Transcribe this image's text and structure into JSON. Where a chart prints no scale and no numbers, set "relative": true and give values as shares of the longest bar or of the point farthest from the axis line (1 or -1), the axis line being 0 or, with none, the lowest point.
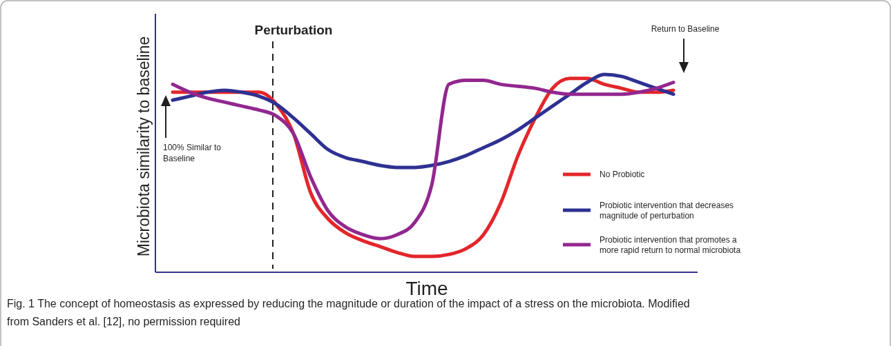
{
  "chart_data": {
    "type": "line",
    "relative": true,
    "xlabel": "Time",
    "ylabel": "Microbiota similarity to baseline",
    "legend": "right",
    "line_style": "solid",
    "marker": "none",
    "categories": [
      null,
      null,
      null,
      null,
      null,
      null,
      null,
      null,
      null,
      null,
      null,
      null,
      null,
      null,
      null,
      null,
      null,
      null,
      null,
      null,
      null,
      null,
      null,
      null,
      null,
      null,
      null,
      null,
      null,
      null
    ],
    "annotations": [
      "Perturbation",
      "100% Similar to Baseline",
      "Return to Baseline",
      "Fig. 1 The concept of homeostasis as expressed by reducing the magnitude or duration of the impact of a stress on the microbiota. Modified from Sanders et al. [12], no permission required"
    ],
    "series": [
      {
        "name": "No Probiotic",
        "color": "#e3262b",
        "values": [
          0.91,
          0.91,
          0.91,
          0.91,
          0.91,
          0.91,
          0.85,
          0.7,
          0.4,
          0.27,
          0.2,
          0.16,
          0.13,
          0.1,
          0.08,
          0.08,
          0.09,
          0.12,
          0.19,
          0.35,
          0.59,
          0.78,
          0.93,
          0.98,
          0.98,
          0.95,
          0.93,
          0.91,
          0.91,
          0.92
        ]
      },
      {
        "name": "Probiotic intervention that decreases magnitude of perturbation",
        "color": "#2e3192",
        "values": [
          0.87,
          0.89,
          0.91,
          0.92,
          0.91,
          0.89,
          0.85,
          0.78,
          0.7,
          0.62,
          0.58,
          0.56,
          0.54,
          0.53,
          0.53,
          0.54,
          0.56,
          0.59,
          0.63,
          0.67,
          0.72,
          0.78,
          0.84,
          0.9,
          0.96,
          1,
          0.99,
          0.96,
          0.93,
          0.9
        ]
      },
      {
        "name": "Probiotic intervention that promotes a more rapid return to normal microbiota",
        "color": "#92278f",
        "values": [
          0.95,
          0.91,
          0.88,
          0.86,
          0.84,
          0.82,
          0.79,
          0.7,
          0.48,
          0.31,
          0.23,
          0.19,
          0.17,
          0.19,
          0.25,
          0.44,
          0.95,
          0.97,
          0.97,
          0.95,
          0.94,
          0.93,
          0.91,
          0.9,
          0.9,
          0.9,
          0.9,
          0.91,
          0.93,
          0.96
        ]
      }
    ]
  }
}
